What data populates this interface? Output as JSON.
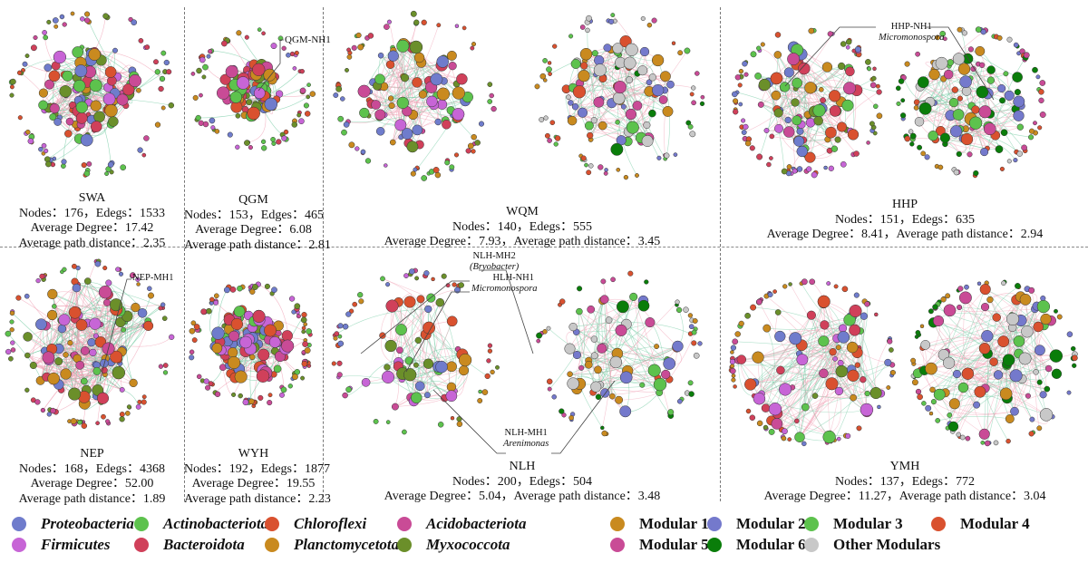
{
  "panels": [
    {
      "id": "SWA",
      "name": "SWA",
      "lines": [
        "Nodes：176，Edegs：1533",
        "Average Degree：17.42",
        "Average path distance：2.35"
      ],
      "nodes": 176,
      "edges": 1533,
      "avg_degree": 17.42,
      "avg_path_distance": 2.35
    },
    {
      "id": "QGM",
      "name": "QGM",
      "lines": [
        "Nodes：153，Edges：465",
        "Average Degree：6.08",
        "Average path distance：2.81"
      ],
      "nodes": 153,
      "edges": 465,
      "avg_degree": 6.08,
      "avg_path_distance": 2.81,
      "callouts": [
        {
          "label": "QGM-NH1",
          "taxon": ""
        }
      ]
    },
    {
      "id": "WQM",
      "name": "WQM",
      "lines": [
        "Nodes：140，Edegs：555",
        "Average Degree：7.93，Average path distance：3.45"
      ],
      "nodes": 140,
      "edges": 555,
      "avg_degree": 7.93,
      "avg_path_distance": 3.45
    },
    {
      "id": "HHP",
      "name": "HHP",
      "lines": [
        "Nodes：151，Edegs：635",
        "Average Degree：8.41，Average path distance：2.94"
      ],
      "nodes": 151,
      "edges": 635,
      "avg_degree": 8.41,
      "avg_path_distance": 2.94,
      "callouts": [
        {
          "label": "HHP-NH1",
          "taxon": "Micromonospora"
        }
      ]
    },
    {
      "id": "NEP",
      "name": "NEP",
      "lines": [
        "Nodes：168，Edegs：4368",
        "Average Degree：52.00",
        "Average path distance：1.89"
      ],
      "nodes": 168,
      "edges": 4368,
      "avg_degree": 52.0,
      "avg_path_distance": 1.89,
      "callouts": [
        {
          "label": "NEP-MH1",
          "taxon": ""
        }
      ]
    },
    {
      "id": "WYH",
      "name": "WYH",
      "lines": [
        "Nodes：192，Edegs：1877",
        "Average Degree：19.55",
        "Average path distance：2.23"
      ],
      "nodes": 192,
      "edges": 1877,
      "avg_degree": 19.55,
      "avg_path_distance": 2.23
    },
    {
      "id": "NLH",
      "name": "NLH",
      "lines": [
        "Nodes：200，Edegs：504",
        "Average Degree：5.04，Average path distance：3.48"
      ],
      "nodes": 200,
      "edges": 504,
      "avg_degree": 5.04,
      "avg_path_distance": 3.48,
      "callouts": [
        {
          "label": "NLH-MH2",
          "taxon": "(Bryobacter)"
        },
        {
          "label": "HLH-NH1",
          "taxon": "Micromonospora"
        },
        {
          "label": "NLH-MH1",
          "taxon": "Arenimonas"
        }
      ]
    },
    {
      "id": "YMH",
      "name": "YMH",
      "lines": [
        "Nodes：137，Edegs：772",
        "Average Degree：11.27，Average path distance：3.04"
      ],
      "nodes": 137,
      "edges": 772,
      "avg_degree": 11.27,
      "avg_path_distance": 3.04
    }
  ],
  "legend": {
    "phyla": [
      {
        "label": "Proteobacteria",
        "color": "#6f7ccc"
      },
      {
        "label": "Actinobacteriota",
        "color": "#5dc24d"
      },
      {
        "label": "Chloroflexi",
        "color": "#d9512f"
      },
      {
        "label": "Acidobacteriota",
        "color": "#c94b96"
      },
      {
        "label": "Firmicutes",
        "color": "#c765d6"
      },
      {
        "label": "Bacteroidota",
        "color": "#d0405a"
      },
      {
        "label": "Planctomycetota",
        "color": "#c98a1f"
      },
      {
        "label": "Myxococcota",
        "color": "#6b8f2a"
      }
    ],
    "modules": [
      {
        "label": "Modular 1",
        "color": "#c98a1f"
      },
      {
        "label": "Modular 2",
        "color": "#7479cc"
      },
      {
        "label": "Modular 3",
        "color": "#5dc24d"
      },
      {
        "label": "Modular 4",
        "color": "#d9512f"
      },
      {
        "label": "Modular 5",
        "color": "#c94b96"
      },
      {
        "label": "Modular 6",
        "color": "#0a7d0a"
      },
      {
        "label": "Other Modulars",
        "color": "#c8c8c8"
      }
    ]
  },
  "edge_colors": {
    "positive": "#f0a0b4",
    "negative": "#6fc9a0"
  }
}
